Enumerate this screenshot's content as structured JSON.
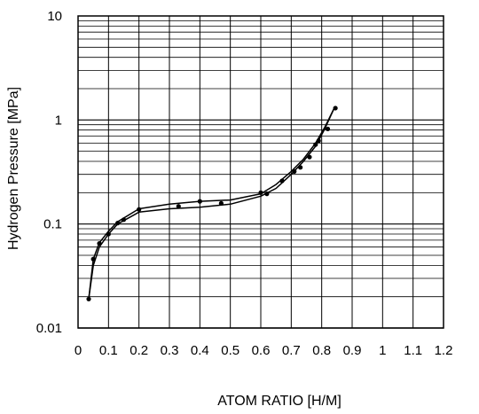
{
  "chart_data": {
    "type": "line",
    "title": "",
    "xlabel": "ATOM RATIO [H/M]",
    "ylabel": "Hydrogen Pressure [MPa]",
    "xlim": [
      0,
      1.2
    ],
    "ylim": [
      0.01,
      10
    ],
    "y_scale": "log",
    "grid": true,
    "x_ticks": [
      "0",
      "0.1",
      "0.2",
      "0.3",
      "0.4",
      "0.5",
      "0.6",
      "0.7",
      "0.8",
      "0.9",
      "1",
      "1.1",
      "1.2"
    ],
    "y_ticks": [
      "0.01",
      "0.1",
      "1",
      "10"
    ],
    "series": [
      {
        "name": "",
        "x": [
          0.035,
          0.05,
          0.07,
          0.1,
          0.13,
          0.2,
          0.3,
          0.4,
          0.5,
          0.6,
          0.65,
          0.7,
          0.74,
          0.78,
          0.81,
          0.84
        ],
        "y": [
          0.019,
          0.046,
          0.066,
          0.085,
          0.105,
          0.14,
          0.155,
          0.165,
          0.17,
          0.195,
          0.24,
          0.32,
          0.42,
          0.6,
          0.85,
          1.28
        ]
      },
      {
        "name": "",
        "x": [
          0.84,
          0.81,
          0.78,
          0.74,
          0.7,
          0.65,
          0.6,
          0.5,
          0.4,
          0.3,
          0.2,
          0.13,
          0.1,
          0.07,
          0.05,
          0.035
        ],
        "y": [
          1.28,
          0.82,
          0.56,
          0.4,
          0.3,
          0.22,
          0.185,
          0.155,
          0.145,
          0.14,
          0.13,
          0.1,
          0.08,
          0.06,
          0.04,
          0.019
        ]
      }
    ],
    "points": {
      "x": [
        0.035,
        0.05,
        0.07,
        0.1,
        0.13,
        0.15,
        0.2,
        0.33,
        0.4,
        0.47,
        0.6,
        0.62,
        0.67,
        0.71,
        0.73,
        0.76,
        0.78,
        0.79,
        0.82,
        0.845
      ],
      "y": [
        0.019,
        0.046,
        0.065,
        0.08,
        0.102,
        0.11,
        0.138,
        0.148,
        0.165,
        0.158,
        0.2,
        0.195,
        0.26,
        0.32,
        0.35,
        0.44,
        0.58,
        0.63,
        0.82,
        1.3
      ]
    }
  }
}
